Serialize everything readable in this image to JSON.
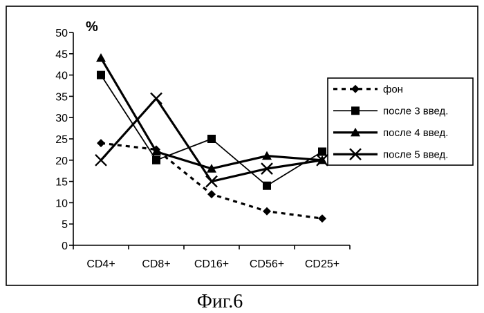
{
  "caption": "Фиг.6",
  "chart_data": {
    "type": "line",
    "title": "",
    "ylabel": "%",
    "xlabel": "",
    "categories": [
      "CD4+",
      "CD8+",
      "CD16+",
      "CD56+",
      "CD25+"
    ],
    "ylim": [
      0,
      50
    ],
    "yticks": [
      0,
      5,
      10,
      15,
      20,
      25,
      30,
      35,
      40,
      45,
      50
    ],
    "grid": false,
    "legend_position": "right",
    "series": [
      {
        "name": "фон",
        "values": [
          24,
          22.5,
          12,
          8,
          6.3
        ],
        "marker": "diamond",
        "line": "dashed",
        "stroke": "thick"
      },
      {
        "name": "после 3 введ.",
        "values": [
          40,
          20,
          25,
          14,
          22
        ],
        "marker": "square",
        "line": "solid",
        "stroke": "thin"
      },
      {
        "name": "после 4 введ.",
        "values": [
          44,
          22,
          18,
          21,
          20
        ],
        "marker": "triangle",
        "line": "solid",
        "stroke": "thick"
      },
      {
        "name": "после 5 введ.",
        "values": [
          20,
          34.5,
          15,
          18,
          20
        ],
        "marker": "x",
        "line": "solid",
        "stroke": "thick"
      }
    ],
    "color": "#000000"
  }
}
